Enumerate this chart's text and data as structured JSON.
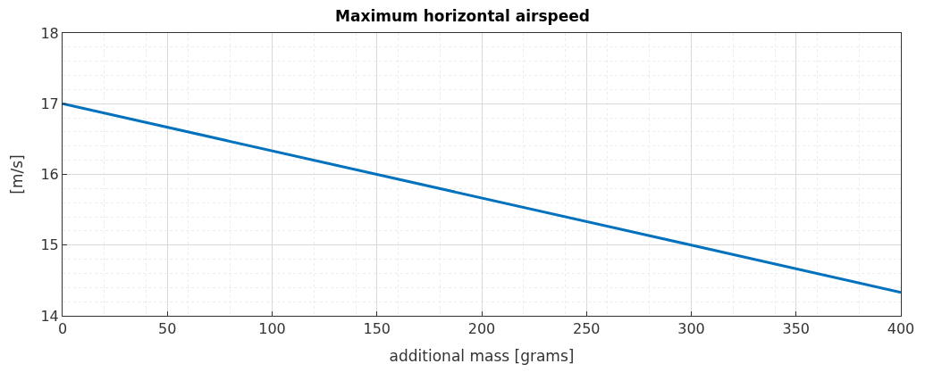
{
  "chart_data": {
    "type": "line",
    "title": "Maximum horizontal airspeed",
    "xlabel": "additional mass [grams]",
    "ylabel": "[m/s]",
    "x": [
      0,
      150,
      300,
      400
    ],
    "series": [
      {
        "color": "#0072bd",
        "values": [
          17,
          16,
          15,
          14.33
        ]
      }
    ],
    "xlim": [
      0,
      400
    ],
    "xticks": [
      0,
      50,
      100,
      150,
      200,
      250,
      300,
      350,
      400
    ],
    "ylim": [
      14,
      18
    ],
    "yticks": [
      14,
      15,
      16,
      17,
      18
    ],
    "grid": true,
    "legend": false,
    "marker": "none",
    "line_style": "solid"
  }
}
